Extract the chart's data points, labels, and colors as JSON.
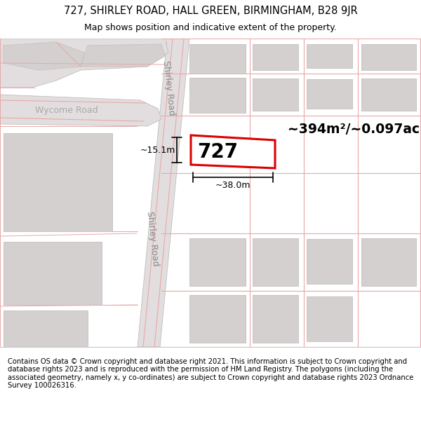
{
  "title_line1": "727, SHIRLEY ROAD, HALL GREEN, BIRMINGHAM, B28 9JR",
  "title_line2": "Map shows position and indicative extent of the property.",
  "footer_text": "Contains OS data © Crown copyright and database right 2021. This information is subject to Crown copyright and database rights 2023 and is reproduced with the permission of HM Land Registry. The polygons (including the associated geometry, namely x, y co-ordinates) are subject to Crown copyright and database rights 2023 Ordnance Survey 100026316.",
  "area_label": "~394m²/~0.097ac.",
  "property_label": "727",
  "width_label": "~38.0m",
  "height_label": "~15.1m",
  "shirley_road_label": "Shirley Road",
  "wycome_label": "Wycome Road",
  "bg_map": "#f2efef",
  "road_fill": "#e2dedf",
  "block_fill": "#d4d0d0",
  "block_ec": "#c8c4c4",
  "pink": "#e8a8a8",
  "red_prop": "#dd0000",
  "white": "#ffffff",
  "black": "#000000",
  "gray_road_ec": "#b8b4b4",
  "title_fs": 10.5,
  "sub_fs": 9.0,
  "footer_fs": 7.2,
  "area_fs": 13.5,
  "prop_fs": 20,
  "dim_fs": 9,
  "road_label_fs": 9,
  "wycome_fs": 9
}
